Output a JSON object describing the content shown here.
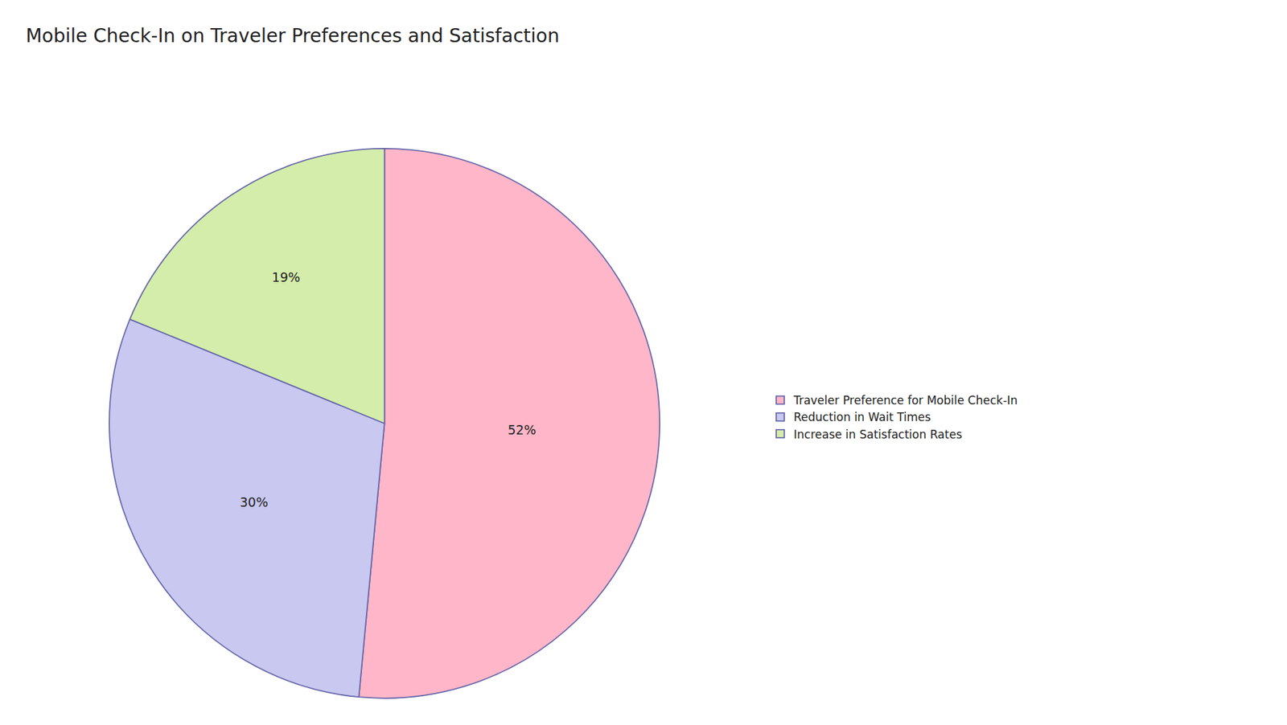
{
  "chart_data": {
    "type": "pie",
    "title": "Mobile Check-In on Traveler Preferences and Satisfaction",
    "categories": [
      "Traveler Preference for Mobile Check-In",
      "Reduction in Wait Times",
      "Increase in Satisfaction Rates"
    ],
    "values": [
      52,
      30,
      19
    ],
    "value_labels": [
      "52%",
      "30%",
      "19%"
    ],
    "colors": [
      "#FFB6C8",
      "#C8C8F0",
      "#D4EDAA"
    ],
    "data_labels": true,
    "legend": "right"
  }
}
